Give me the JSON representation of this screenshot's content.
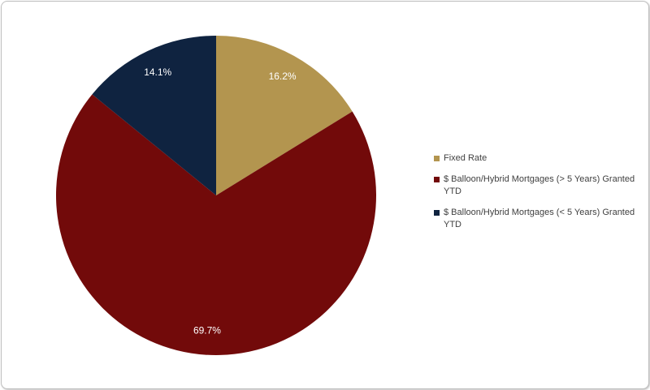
{
  "chart_data": {
    "type": "pie",
    "categories": [
      "Fixed Rate",
      "$ Balloon/Hybrid Mortgages (> 5 Years) Granted YTD",
      "$ Balloon/Hybrid Mortgages (< 5 Years) Granted YTD"
    ],
    "values": [
      16.2,
      69.7,
      14.1
    ],
    "value_labels": [
      "16.2%",
      "69.7%",
      "14.1%"
    ],
    "colors": [
      "#b3954f",
      "#720a0a",
      "#0f2340"
    ],
    "legend": "right"
  }
}
